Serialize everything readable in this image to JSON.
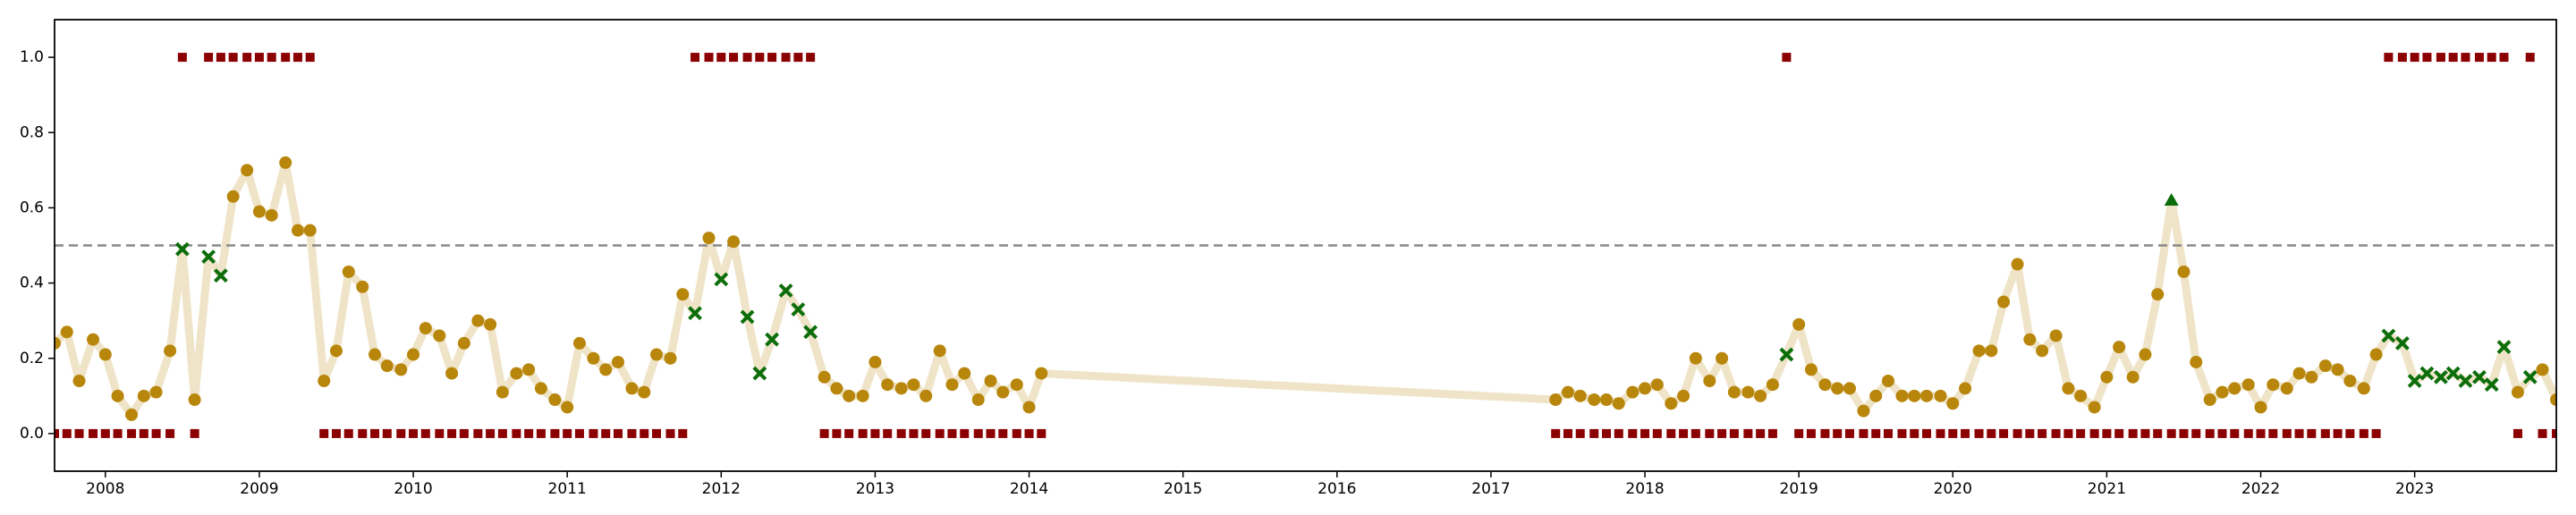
{
  "chart_data": {
    "type": "line",
    "x": [
      2007.67,
      2007.75,
      2007.83,
      2007.92,
      2008,
      2008.08,
      2008.17,
      2008.25,
      2008.33,
      2008.42,
      2008.5,
      2008.58,
      2008.67,
      2008.75,
      2008.83,
      2008.92,
      2009,
      2009.08,
      2009.17,
      2009.25,
      2009.33,
      2009.42,
      2009.5,
      2009.58,
      2009.67,
      2009.75,
      2009.83,
      2009.92,
      2010,
      2010.08,
      2010.17,
      2010.25,
      2010.33,
      2010.42,
      2010.5,
      2010.58,
      2010.67,
      2010.75,
      2010.83,
      2010.92,
      2011,
      2011.08,
      2011.17,
      2011.25,
      2011.33,
      2011.42,
      2011.5,
      2011.58,
      2011.67,
      2011.75,
      2011.83,
      2011.92,
      2012,
      2012.08,
      2012.17,
      2012.25,
      2012.33,
      2012.42,
      2012.5,
      2012.58,
      2012.67,
      2012.75,
      2012.83,
      2012.92,
      2013,
      2013.08,
      2013.17,
      2013.25,
      2013.33,
      2013.42,
      2013.5,
      2013.58,
      2013.67,
      2013.75,
      2013.83,
      2013.92,
      2014,
      2014.08,
      2017.42,
      2017.5,
      2017.58,
      2017.67,
      2017.75,
      2017.83,
      2017.92,
      2018,
      2018.08,
      2018.17,
      2018.25,
      2018.33,
      2018.42,
      2018.5,
      2018.58,
      2018.67,
      2018.75,
      2018.83,
      2018.92,
      2019,
      2019.08,
      2019.17,
      2019.25,
      2019.33,
      2019.42,
      2019.5,
      2019.58,
      2019.67,
      2019.75,
      2019.83,
      2019.92,
      2020,
      2020.08,
      2020.17,
      2020.25,
      2020.33,
      2020.42,
      2020.5,
      2020.58,
      2020.67,
      2020.75,
      2020.83,
      2020.92,
      2021,
      2021.08,
      2021.17,
      2021.25,
      2021.33,
      2021.42,
      2021.5,
      2021.58,
      2021.67,
      2021.75,
      2021.83,
      2021.92,
      2022,
      2022.08,
      2022.17,
      2022.25,
      2022.33,
      2022.42,
      2022.5,
      2022.58,
      2022.67,
      2022.75,
      2022.83,
      2022.92,
      2023,
      2023.08,
      2023.17,
      2023.25,
      2023.33,
      2023.42,
      2023.5,
      2023.58,
      2023.67,
      2023.75,
      2023.83,
      2023.92
    ],
    "series": [
      {
        "color": "#efe4c8",
        "marker_color": "#b8860b",
        "miss_color": "#0b6e0b",
        "values": [
          0.24,
          0.27,
          0.14,
          0.25,
          0.21,
          0.1,
          0.05,
          0.1,
          0.11,
          0.22,
          0.49,
          0.09,
          0.47,
          0.42,
          0.63,
          0.7,
          0.59,
          0.58,
          0.72,
          0.54,
          0.54,
          0.14,
          0.22,
          0.43,
          0.39,
          0.21,
          0.18,
          0.17,
          0.21,
          0.28,
          0.26,
          0.16,
          0.24,
          0.3,
          0.29,
          0.11,
          0.16,
          0.17,
          0.12,
          0.09,
          0.07,
          0.24,
          0.2,
          0.17,
          0.19,
          0.12,
          0.11,
          0.21,
          0.2,
          0.37,
          0.32,
          0.52,
          0.41,
          0.51,
          0.31,
          0.16,
          0.25,
          0.38,
          0.33,
          0.27,
          0.15,
          0.12,
          0.1,
          0.1,
          0.19,
          0.13,
          0.12,
          0.13,
          0.1,
          0.22,
          0.13,
          0.16,
          0.09,
          0.14,
          0.11,
          0.13,
          0.07,
          0.16,
          0.09,
          0.11,
          0.1,
          0.09,
          0.09,
          0.08,
          0.11,
          0.12,
          0.13,
          0.08,
          0.1,
          0.2,
          0.14,
          0.2,
          0.11,
          0.11,
          0.1,
          0.13,
          0.21,
          0.29,
          0.17,
          0.13,
          0.12,
          0.12,
          0.06,
          0.1,
          0.14,
          0.1,
          0.1,
          0.1,
          0.1,
          0.08,
          0.12,
          0.22,
          0.22,
          0.35,
          0.45,
          0.25,
          0.22,
          0.26,
          0.12,
          0.1,
          0.07,
          0.15,
          0.23,
          0.15,
          0.21,
          0.37,
          0.62,
          0.43,
          0.19,
          0.09,
          0.11,
          0.12,
          0.13,
          0.07,
          0.13,
          0.12,
          0.16,
          0.15,
          0.18,
          0.17,
          0.14,
          0.12,
          0.21,
          0.26,
          0.24,
          0.14,
          0.16,
          0.15,
          0.16,
          0.14,
          0.15,
          0.13,
          0.23,
          0.11,
          0.15,
          0.17,
          0.09
        ]
      },
      {
        "color": "#8b0000",
        "marker": "square",
        "values": [
          0,
          0,
          0,
          0,
          0,
          0,
          0,
          0,
          0,
          0,
          1,
          0,
          1,
          1,
          1,
          1,
          1,
          1,
          1,
          1,
          1,
          0,
          0,
          0,
          0,
          0,
          0,
          0,
          0,
          0,
          0,
          0,
          0,
          0,
          0,
          0,
          0,
          0,
          0,
          0,
          0,
          0,
          0,
          0,
          0,
          0,
          0,
          0,
          0,
          0,
          1,
          1,
          1,
          1,
          1,
          1,
          1,
          1,
          1,
          1,
          0,
          0,
          0,
          0,
          0,
          0,
          0,
          0,
          0,
          0,
          0,
          0,
          0,
          0,
          0,
          0,
          0,
          0,
          0,
          0,
          0,
          0,
          0,
          0,
          0,
          0,
          0,
          0,
          0,
          0,
          0,
          0,
          0,
          0,
          0,
          0,
          1,
          0,
          0,
          0,
          0,
          0,
          0,
          0,
          0,
          0,
          0,
          0,
          0,
          0,
          0,
          0,
          0,
          0,
          0,
          0,
          0,
          0,
          0,
          0,
          0,
          0,
          0,
          0,
          0,
          0,
          0,
          0,
          0,
          0,
          0,
          0,
          0,
          0,
          0,
          0,
          0,
          0,
          0,
          0,
          0,
          0,
          0,
          1,
          1,
          1,
          1,
          1,
          1,
          1,
          1,
          1,
          1,
          0,
          1,
          0,
          0
        ]
      }
    ],
    "threshold": 0.5,
    "xlim": [
      2007.67,
      2023.92
    ],
    "ylim": [
      -0.1,
      1.1
    ],
    "xticks": [
      2008,
      2009,
      2010,
      2011,
      2012,
      2013,
      2014,
      2015,
      2016,
      2017,
      2018,
      2019,
      2020,
      2021,
      2022,
      2023
    ],
    "yticks": [
      {
        "value": 0,
        "label": "0.0"
      },
      0.2,
      0.4,
      0.6,
      0.8,
      {
        "value": 1,
        "label": "1.0"
      }
    ]
  }
}
